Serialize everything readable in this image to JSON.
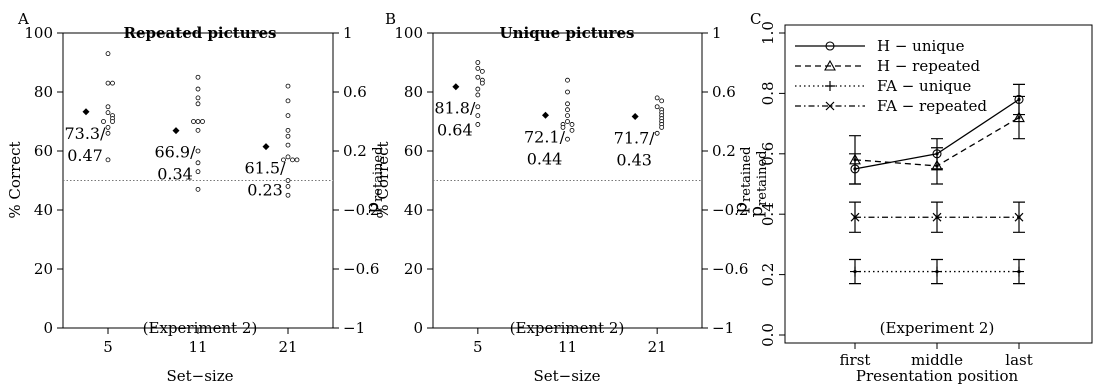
{
  "chart_data": [
    {
      "panel_label": "A",
      "type": "scatter",
      "title": "Repeated pictures",
      "annotation": "(Experiment 2)",
      "xlabel": "Set−size",
      "ylabel": "% Correct",
      "y2label": "p",
      "y2label_sub": "retained",
      "categories": [
        "5",
        "11",
        "21"
      ],
      "ylim": [
        0,
        100
      ],
      "yticks": [
        "0",
        "20",
        "40",
        "60",
        "80",
        "100"
      ],
      "y2ticks": [
        "−1",
        "−0.6",
        "−0.2",
        "0.2",
        "0.6",
        "1"
      ],
      "chance_level": 50,
      "means": [
        {
          "category": "5",
          "value": 73.3,
          "label_line1": "73.3/",
          "label_line2": "0.47"
        },
        {
          "category": "11",
          "value": 66.9,
          "label_line1": "66.9/",
          "label_line2": "0.34"
        },
        {
          "category": "21",
          "value": 61.5,
          "label_line1": "61.5/",
          "label_line2": "0.23"
        }
      ],
      "subjects": [
        [
          93,
          83,
          83,
          75,
          73,
          72,
          71,
          70,
          70,
          68,
          66,
          57
        ],
        [
          85,
          81,
          78,
          76,
          70,
          70,
          70,
          67,
          60,
          56,
          53,
          47
        ],
        [
          82,
          77,
          72,
          67,
          65,
          62,
          58,
          57,
          57,
          57,
          50,
          48,
          45
        ]
      ]
    },
    {
      "panel_label": "B",
      "type": "scatter",
      "title": "Unique pictures",
      "annotation": "(Experiment 2)",
      "xlabel": "Set−size",
      "ylabel": "% Correct",
      "y2label": "p",
      "y2label_sub": "retained",
      "categories": [
        "5",
        "11",
        "21"
      ],
      "ylim": [
        0,
        100
      ],
      "yticks": [
        "0",
        "20",
        "40",
        "60",
        "80",
        "100"
      ],
      "y2ticks": [
        "−1",
        "−0.6",
        "−0.2",
        "0.2",
        "0.6",
        "1"
      ],
      "chance_level": 50,
      "means": [
        {
          "category": "5",
          "value": 81.8,
          "label_line1": "81.8/",
          "label_line2": "0.64"
        },
        {
          "category": "11",
          "value": 72.1,
          "label_line1": "72.1/",
          "label_line2": "0.44"
        },
        {
          "category": "21",
          "value": 71.7,
          "label_line1": "71.7/",
          "label_line2": "0.43"
        }
      ],
      "subjects": [
        [
          90,
          88,
          87,
          85,
          84,
          83,
          81,
          79,
          75,
          72,
          69
        ],
        [
          84,
          80,
          76,
          74,
          72,
          70,
          69,
          69,
          68,
          67,
          64
        ],
        [
          78,
          77,
          75,
          74,
          73,
          72,
          71,
          70,
          69,
          68,
          66
        ]
      ]
    },
    {
      "panel_label": "C",
      "type": "line",
      "annotation": "(Experiment 2)",
      "xlabel": "Presentation position",
      "ylabel": "p",
      "ylabel_sub": "retained",
      "categories": [
        "first",
        "middle",
        "last"
      ],
      "ylim": [
        0,
        1
      ],
      "yticks": [
        "0.0",
        "0.2",
        "0.4",
        "0.6",
        "0.8",
        "1.0"
      ],
      "legend_position": "top-left",
      "series": [
        {
          "name": "H − unique",
          "marker": "circle",
          "dash": "solid",
          "values": [
            0.55,
            0.6,
            0.78
          ],
          "err": [
            0.05,
            0.05,
            0.05
          ]
        },
        {
          "name": "H − repeated",
          "marker": "triangle",
          "dash": "dashed",
          "values": [
            0.58,
            0.56,
            0.72
          ],
          "err": [
            0.08,
            0.06,
            0.07
          ]
        },
        {
          "name": "FA − unique",
          "marker": "plus",
          "dash": "dotted",
          "values": [
            0.21,
            0.21,
            0.21
          ],
          "err": [
            0.04,
            0.04,
            0.04
          ]
        },
        {
          "name": "FA − repeated",
          "marker": "cross",
          "dash": "dashdot",
          "values": [
            0.39,
            0.39,
            0.39
          ],
          "err": [
            0.05,
            0.05,
            0.05
          ]
        }
      ]
    }
  ]
}
